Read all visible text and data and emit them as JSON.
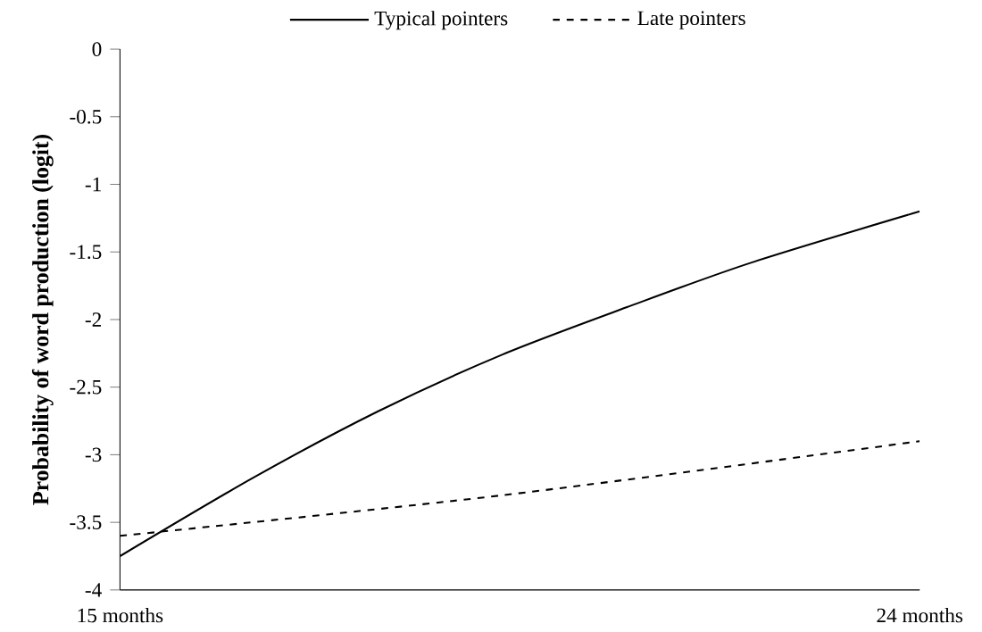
{
  "chart_data": {
    "type": "line",
    "ylabel": "Probability of word production (logit)",
    "xlim": [
      15,
      24
    ],
    "xticks": [
      {
        "value": 15,
        "label": "15 months"
      },
      {
        "value": 24,
        "label": "24 months"
      }
    ],
    "ylim": [
      -4,
      0
    ],
    "yticks": [
      -4,
      -3.5,
      -3,
      -2.5,
      -2,
      -1.5,
      -1,
      -0.5,
      0
    ],
    "legend": "top",
    "grid": false,
    "series": [
      {
        "name": "Typical pointers",
        "color": "#000000",
        "line_style": "solid",
        "x": [
          15,
          16.5,
          17.9,
          19.3,
          20.7,
          22.1,
          24
        ],
        "values": [
          -3.75,
          -3.17,
          -2.68,
          -2.26,
          -1.91,
          -1.58,
          -1.2
        ]
      },
      {
        "name": "Late pointers",
        "color": "#000000",
        "line_style": "dashed",
        "x": [
          15,
          19.3,
          24
        ],
        "values": [
          -3.6,
          -3.3,
          -2.9
        ]
      }
    ]
  }
}
